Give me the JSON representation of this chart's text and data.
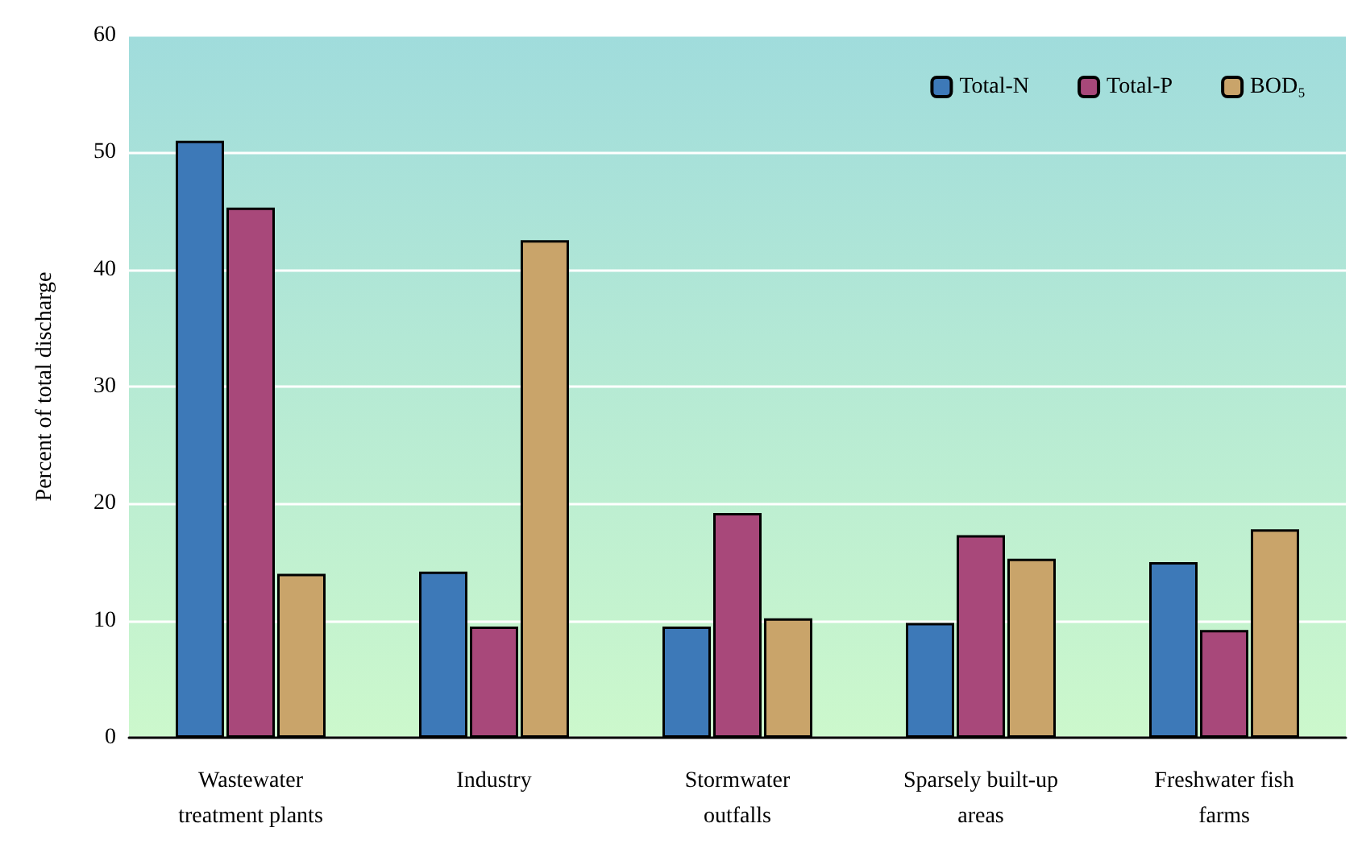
{
  "chart_data": {
    "type": "bar",
    "ylabel": "Percent of total discharge",
    "categories": [
      "Wastewater\ntreatment plants",
      "Industry",
      "Stormwater\noutfalls",
      "Sparsely built-up\nareas",
      "Freshwater fish\nfarms"
    ],
    "series": [
      {
        "name": "Total-N",
        "color": "#3d79b8",
        "values": [
          51,
          14.2,
          9.5,
          9.8,
          15
        ]
      },
      {
        "name": "Total-P",
        "color": "#a8487a",
        "values": [
          45.3,
          9.5,
          19.2,
          17.3,
          9.2
        ]
      },
      {
        "name": "BOD₅",
        "color": "#c9a46a",
        "values": [
          14,
          42.5,
          10.2,
          15.3,
          17.8
        ]
      }
    ],
    "ylim": [
      0,
      60
    ],
    "yticks": [
      0,
      10,
      20,
      30,
      40,
      50,
      60
    ],
    "grid": "y",
    "legend": "top right"
  }
}
